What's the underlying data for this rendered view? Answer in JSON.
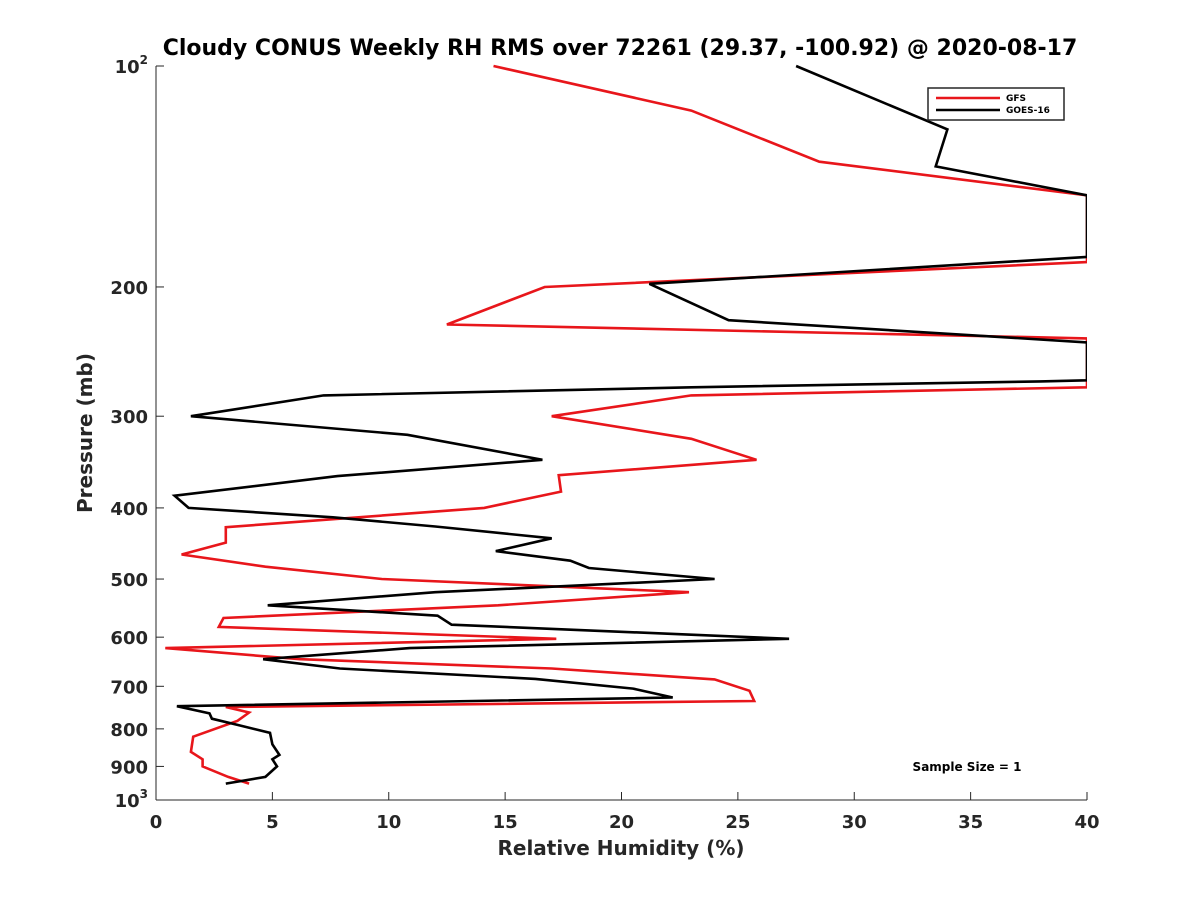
{
  "chart_data": {
    "type": "line",
    "title": "Cloudy CONUS Weekly RH RMS over 72261 (29.37, -100.92) @ 2020-08-17",
    "xlabel": "Relative Humidity (%)",
    "ylabel": "Pressure (mb)",
    "xlim": [
      0,
      40
    ],
    "ylim": [
      100,
      1000
    ],
    "y_scale": "log",
    "y_reversed": true,
    "grid": false,
    "legend_position": "top-right",
    "x_ticks": [
      "0",
      "5",
      "10",
      "15",
      "20",
      "25",
      "30",
      "35",
      "40"
    ],
    "y_ticks": [
      {
        "value": 100,
        "base": "10",
        "exp": "2"
      },
      {
        "value": 200,
        "label": "200"
      },
      {
        "value": 300,
        "label": "300"
      },
      {
        "value": 400,
        "label": "400"
      },
      {
        "value": 500,
        "label": "500"
      },
      {
        "value": 600,
        "label": "600"
      },
      {
        "value": 700,
        "label": "700"
      },
      {
        "value": 800,
        "label": "800"
      },
      {
        "value": 900,
        "label": "900"
      },
      {
        "value": 1000,
        "base": "10",
        "exp": "3"
      }
    ],
    "series": [
      {
        "name": "GFS",
        "color": "#e8161b",
        "points": [
          [
            14.5,
            100
          ],
          [
            23,
            115
          ],
          [
            28.5,
            135
          ],
          [
            40,
            150
          ],
          [
            40,
            185
          ],
          [
            16.7,
            200
          ],
          [
            12.5,
            225
          ],
          [
            40,
            235
          ],
          [
            40,
            274
          ],
          [
            23,
            281
          ],
          [
            17,
            300
          ],
          [
            23,
            322
          ],
          [
            25.8,
            344
          ],
          [
            17.3,
            361
          ],
          [
            17.4,
            380
          ],
          [
            14.1,
            400
          ],
          [
            3,
            425
          ],
          [
            3,
            446
          ],
          [
            1.1,
            463
          ],
          [
            4.7,
            481
          ],
          [
            9.7,
            500
          ],
          [
            22.9,
            521
          ],
          [
            14.7,
            543
          ],
          [
            2.9,
            565
          ],
          [
            2.7,
            581
          ],
          [
            17.2,
            603
          ],
          [
            0.4,
            621
          ],
          [
            6.2,
            643
          ],
          [
            17,
            662
          ],
          [
            24,
            685
          ],
          [
            25.5,
            710
          ],
          [
            25.7,
            733
          ],
          [
            3,
            747
          ],
          [
            4,
            760
          ],
          [
            3.5,
            780
          ],
          [
            1.6,
            820
          ],
          [
            1.5,
            860
          ],
          [
            2,
            880
          ],
          [
            2,
            900
          ],
          [
            3.1,
            930
          ],
          [
            4,
            950
          ]
        ]
      },
      {
        "name": "GOES-16",
        "color": "#000000",
        "points": [
          [
            27.5,
            100
          ],
          [
            34,
            122
          ],
          [
            33.5,
            137
          ],
          [
            40,
            150
          ],
          [
            40,
            182
          ],
          [
            21.2,
            198
          ],
          [
            24.6,
            222
          ],
          [
            40,
            238
          ],
          [
            40,
            268
          ],
          [
            38,
            269
          ],
          [
            23,
            274
          ],
          [
            7.2,
            281
          ],
          [
            1.5,
            300
          ],
          [
            10.8,
            318
          ],
          [
            16.6,
            344
          ],
          [
            7.8,
            362
          ],
          [
            0.8,
            385
          ],
          [
            1.4,
            400
          ],
          [
            7.6,
            412
          ],
          [
            12,
            424
          ],
          [
            17,
            440
          ],
          [
            14.6,
            458
          ],
          [
            17.8,
            472
          ],
          [
            18.6,
            483
          ],
          [
            24,
            500
          ],
          [
            12,
            521
          ],
          [
            4.8,
            543
          ],
          [
            12.1,
            561
          ],
          [
            12.7,
            577
          ],
          [
            27.2,
            603
          ],
          [
            10.9,
            621
          ],
          [
            4.6,
            643
          ],
          [
            7.9,
            662
          ],
          [
            16.3,
            684
          ],
          [
            20.5,
            705
          ],
          [
            22.2,
            725
          ],
          [
            0.9,
            745
          ],
          [
            2.3,
            762
          ],
          [
            2.4,
            775
          ],
          [
            3.5,
            790
          ],
          [
            4.9,
            810
          ],
          [
            5,
            840
          ],
          [
            5.3,
            868
          ],
          [
            5,
            880
          ],
          [
            5.2,
            900
          ],
          [
            4.7,
            930
          ],
          [
            3,
            950
          ]
        ]
      }
    ],
    "annotation": "Sample Size = 1"
  }
}
